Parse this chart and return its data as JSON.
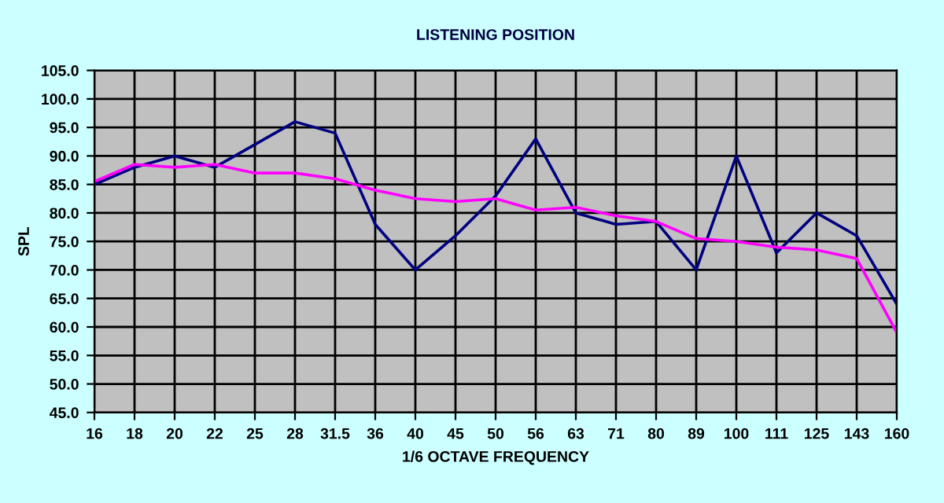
{
  "chart_data": {
    "type": "line",
    "title": "LISTENING POSITION",
    "xlabel": "1/6 OCTAVE FREQUENCY",
    "ylabel": "SPL",
    "categories": [
      "16",
      "18",
      "20",
      "22",
      "25",
      "28",
      "31.5",
      "36",
      "40",
      "45",
      "50",
      "56",
      "63",
      "71",
      "80",
      "89",
      "100",
      "111",
      "125",
      "143",
      "160"
    ],
    "series": [
      {
        "color": "#000080",
        "values": [
          85,
          88,
          90,
          88,
          92,
          96,
          94,
          78,
          70,
          76,
          83,
          93,
          80,
          78,
          78.5,
          70,
          90,
          73,
          80,
          76,
          64
        ]
      },
      {
        "color": "#ff00ff",
        "values": [
          85.5,
          88.5,
          88,
          88.5,
          87,
          87,
          86,
          84,
          82.5,
          82,
          82.5,
          80.5,
          81,
          79.5,
          78.5,
          75.5,
          75,
          74,
          73.5,
          72,
          59
        ]
      }
    ],
    "ylim": [
      45,
      105
    ],
    "yticks": [
      {
        "value": 45,
        "label": "45.0"
      },
      {
        "value": 50,
        "label": "50.0"
      },
      {
        "value": 55,
        "label": "55.0"
      },
      {
        "value": 60,
        "label": "60.0"
      },
      {
        "value": 65,
        "label": "65.0"
      },
      {
        "value": 70,
        "label": "70.0"
      },
      {
        "value": 75,
        "label": "75.0"
      },
      {
        "value": 80,
        "label": "80.0"
      },
      {
        "value": 85,
        "label": "85.0"
      },
      {
        "value": 90,
        "label": "90.0"
      },
      {
        "value": 95,
        "label": "95.0"
      },
      {
        "value": 100,
        "label": "100.0"
      },
      {
        "value": 105,
        "label": "105.0"
      }
    ],
    "grid": true,
    "marker": "none",
    "line_style": "solid"
  }
}
